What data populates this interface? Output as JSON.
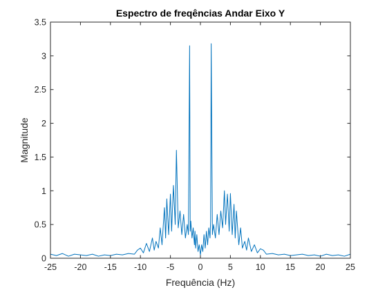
{
  "chart_data": {
    "type": "line",
    "title": "Espectro de freqências Andar Eixo Y",
    "xlabel": "Frequência (Hz)",
    "ylabel": "Magnitude",
    "xlim": [
      -25,
      25
    ],
    "ylim": [
      0,
      3.5
    ],
    "grid": false,
    "box": true,
    "line_color": "#0072BD",
    "x_ticks": [
      "-25",
      "-20",
      "-15",
      "-10",
      "-5",
      "0",
      "5",
      "10",
      "15",
      "20",
      "25"
    ],
    "y_ticks": [
      "0",
      "0.5",
      "1",
      "1.5",
      "2",
      "2.5",
      "3",
      "3.5"
    ],
    "series": [
      {
        "name": "",
        "x": [
          -25,
          -24,
          -23,
          -22,
          -21,
          -20,
          -19,
          -18,
          -17,
          -16,
          -15,
          -14,
          -13,
          -12,
          -11,
          -10.5,
          -10,
          -9.5,
          -9,
          -8.5,
          -8,
          -7.7,
          -7.4,
          -7,
          -6.7,
          -6.4,
          -6,
          -5.8,
          -5.6,
          -5.3,
          -5,
          -4.8,
          -4.5,
          -4.2,
          -4,
          -3.7,
          -3.4,
          -3.1,
          -2.8,
          -2.5,
          -2.2,
          -2,
          -1.8,
          -1.7,
          -1.6,
          -1.4,
          -1.2,
          -1,
          -0.9,
          -0.8,
          -0.6,
          -0.4,
          -0.2,
          0,
          0.2,
          0.4,
          0.6,
          0.8,
          1,
          1.2,
          1.4,
          1.6,
          1.7,
          1.8,
          2,
          2.2,
          2.5,
          2.8,
          3.1,
          3.4,
          3.7,
          4,
          4.2,
          4.5,
          4.8,
          5,
          5.3,
          5.6,
          5.8,
          6,
          6.4,
          6.7,
          7,
          7.4,
          7.7,
          8,
          8.5,
          9,
          9.5,
          10,
          10.5,
          11,
          12,
          13,
          14,
          15,
          16,
          17,
          18,
          19,
          20,
          21,
          22,
          23,
          24,
          25
        ],
        "y": [
          0.06,
          0.04,
          0.07,
          0.03,
          0.06,
          0.05,
          0.04,
          0.06,
          0.03,
          0.05,
          0.04,
          0.06,
          0.05,
          0.07,
          0.06,
          0.12,
          0.15,
          0.08,
          0.22,
          0.1,
          0.3,
          0.12,
          0.25,
          0.15,
          0.45,
          0.2,
          0.75,
          0.3,
          0.88,
          0.35,
          0.95,
          0.4,
          1.08,
          0.5,
          1.6,
          0.45,
          0.7,
          0.35,
          0.65,
          0.3,
          0.5,
          0.35,
          3.15,
          0.4,
          0.55,
          0.3,
          0.45,
          0.2,
          0.4,
          0.15,
          0.35,
          0.1,
          0.2,
          0.05,
          0.2,
          0.1,
          0.35,
          0.15,
          0.4,
          0.2,
          0.45,
          0.3,
          0.55,
          3.18,
          0.35,
          0.5,
          0.3,
          0.65,
          0.35,
          0.7,
          0.45,
          1.0,
          0.5,
          0.95,
          0.4,
          0.96,
          0.35,
          0.8,
          0.3,
          0.7,
          0.2,
          0.45,
          0.15,
          0.25,
          0.12,
          0.3,
          0.1,
          0.2,
          0.08,
          0.14,
          0.12,
          0.06,
          0.07,
          0.05,
          0.06,
          0.04,
          0.05,
          0.06,
          0.04,
          0.05,
          0.03,
          0.06,
          0.04,
          0.05,
          0.03,
          0.06
        ]
      }
    ]
  }
}
